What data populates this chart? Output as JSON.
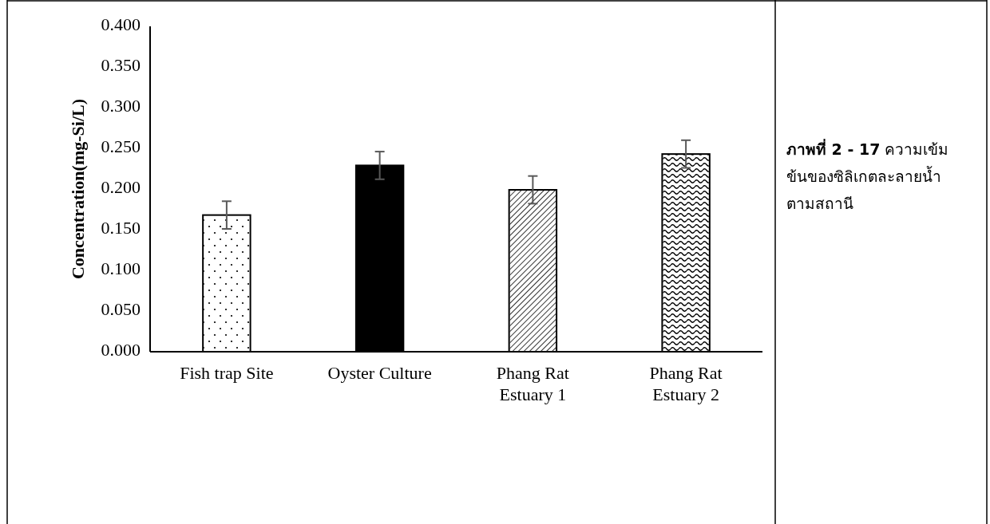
{
  "chart_data": {
    "type": "bar",
    "title": "ภาพที่ 2 - 17",
    "subtitle": "ความเข้มข้นของซิลิเกตละลายน้ำตามสถานี",
    "ylabel": "Concentration(mg-Si/L)",
    "categories": [
      "Fish trap Site",
      "Oyster Culture",
      "Phang Rat Estuary 1",
      "Phang Rat Estuary 2"
    ],
    "values": [
      0.168,
      0.229,
      0.199,
      0.243
    ],
    "errors": [
      0.017,
      0.017,
      0.017,
      0.017
    ],
    "colors": [
      "#ffffff",
      "#000000",
      "#ffffff",
      "#ffffff"
    ],
    "ylim": [
      0,
      0.4
    ],
    "yticks": [
      {
        "value": 0,
        "label": "0.000"
      },
      {
        "value": 0.05,
        "label": "0.050"
      },
      {
        "value": 0.1,
        "label": "0.100"
      },
      {
        "value": 0.15,
        "label": "0.150"
      },
      {
        "value": 0.2,
        "label": "0.200"
      },
      {
        "value": 0.25,
        "label": "0.250"
      },
      {
        "value": 0.3,
        "label": "0.300"
      },
      {
        "value": 0.35,
        "label": "0.350"
      },
      {
        "value": 0.4,
        "label": "0.400"
      }
    ]
  }
}
